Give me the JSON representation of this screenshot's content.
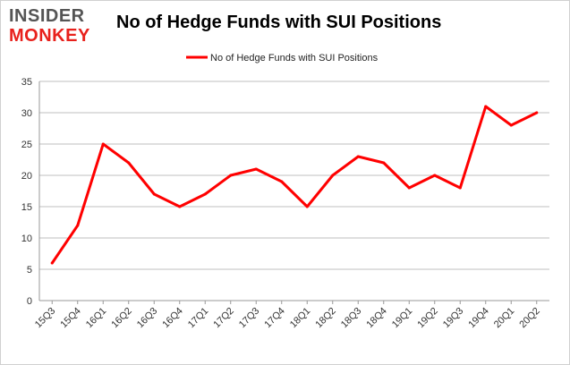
{
  "logo": {
    "line1": "INSIDER",
    "line2": "MONKEY"
  },
  "chart_data": {
    "type": "line",
    "title": "No of Hedge Funds with SUI Positions",
    "xlabel": "",
    "ylabel": "",
    "categories": [
      "15Q3",
      "15Q4",
      "16Q1",
      "16Q2",
      "16Q3",
      "16Q4",
      "17Q1",
      "17Q2",
      "17Q3",
      "17Q4",
      "18Q1",
      "18Q2",
      "18Q3",
      "18Q4",
      "19Q1",
      "19Q2",
      "19Q3",
      "19Q4",
      "20Q1",
      "20Q2"
    ],
    "series": [
      {
        "name": "No of Hedge Funds with SUI Positions",
        "values": [
          6,
          12,
          25,
          22,
          17,
          15,
          17,
          20,
          21,
          19,
          15,
          20,
          23,
          22,
          18,
          20,
          18,
          31,
          28,
          30
        ],
        "color": "#ff0000"
      }
    ],
    "ylim": [
      0,
      35
    ],
    "yticks": [
      0,
      5,
      10,
      15,
      20,
      25,
      30,
      35
    ],
    "grid": true,
    "legend_position": "top-center"
  }
}
